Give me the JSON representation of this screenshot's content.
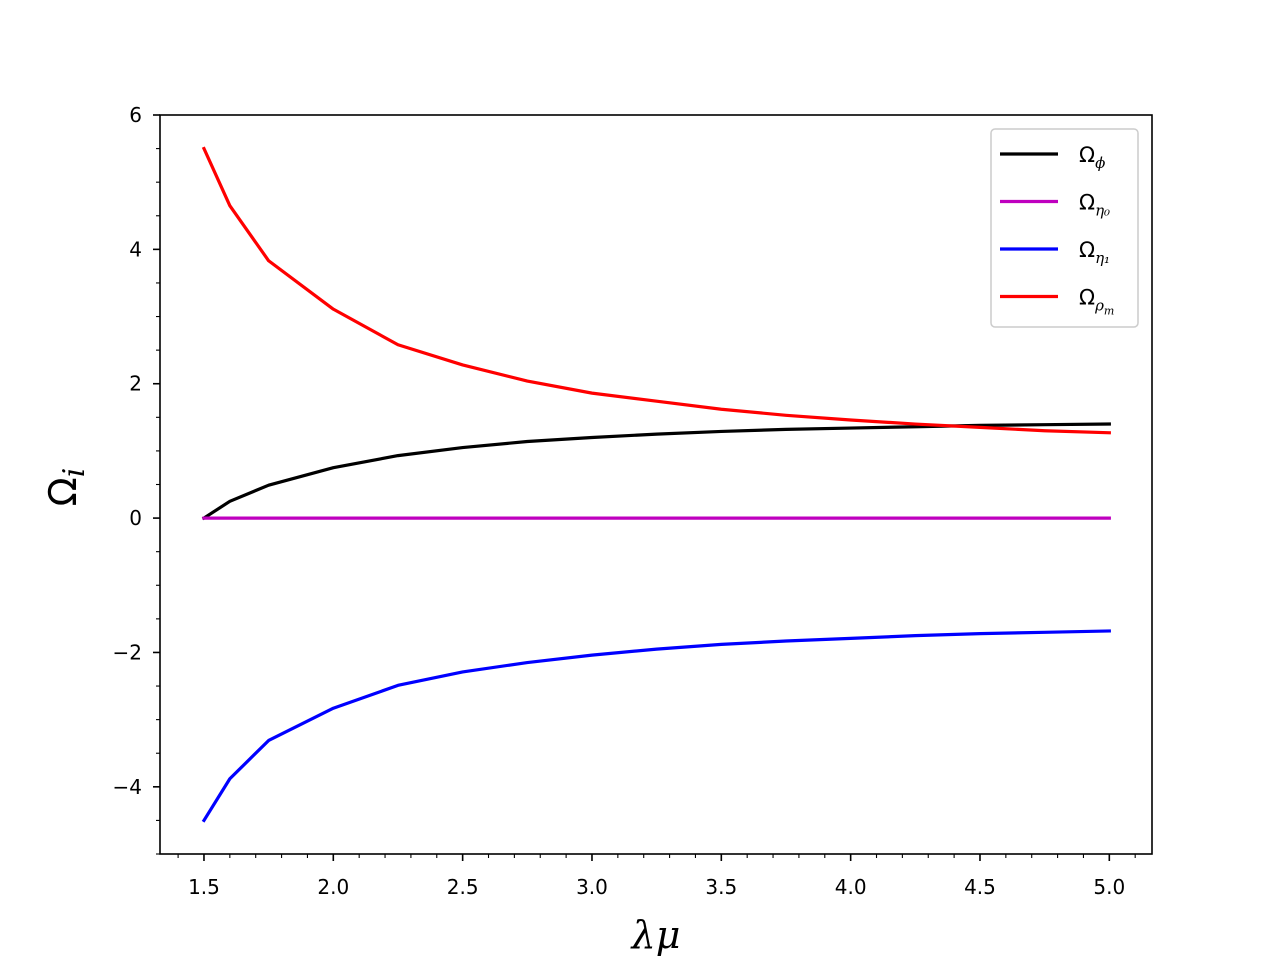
{
  "chart_data": {
    "type": "line",
    "title": "",
    "xlabel": "λμ",
    "ylabel": "Ω",
    "ylabel_sub": "i",
    "xlim": [
      1.33,
      5.165
    ],
    "ylim": [
      -5.0,
      6.0
    ],
    "x_ticks": [
      1.5,
      2.0,
      2.5,
      3.0,
      3.5,
      4.0,
      4.5,
      5.0
    ],
    "x_tick_labels": [
      "1.5",
      "2.0",
      "2.5",
      "3.0",
      "3.5",
      "4.0",
      "4.5",
      "5.0"
    ],
    "y_ticks": [
      -4,
      -2,
      0,
      2,
      4,
      6
    ],
    "y_tick_labels": [
      "−4",
      "−2",
      "0",
      "2",
      "4",
      "6"
    ],
    "grid": false,
    "legend_position": "top-right",
    "x": [
      1.5,
      1.6,
      1.75,
      2.0,
      2.25,
      2.5,
      2.75,
      3.0,
      3.25,
      3.5,
      3.75,
      4.0,
      4.25,
      4.5,
      4.75,
      5.0
    ],
    "series": [
      {
        "name": "Ω",
        "name_sub": "ϕ",
        "color": "#000000",
        "values": [
          0.0,
          0.25,
          0.49,
          0.75,
          0.93,
          1.05,
          1.14,
          1.2,
          1.25,
          1.29,
          1.32,
          1.34,
          1.36,
          1.38,
          1.39,
          1.4
        ]
      },
      {
        "name": "Ω",
        "name_sub": "η₀",
        "color": "#bf00bf",
        "values": [
          0.0,
          0.0,
          0.0,
          0.0,
          0.0,
          0.0,
          0.0,
          0.0,
          0.0,
          0.0,
          0.0,
          0.0,
          0.0,
          0.0,
          0.0,
          0.0
        ]
      },
      {
        "name": "Ω",
        "name_sub": "η₁",
        "color": "#0000ff",
        "values": [
          -4.5,
          -3.88,
          -3.31,
          -2.83,
          -2.49,
          -2.29,
          -2.15,
          -2.04,
          -1.95,
          -1.88,
          -1.83,
          -1.79,
          -1.75,
          -1.72,
          -1.7,
          -1.68
        ]
      },
      {
        "name": "Ω",
        "name_sub": "ρ",
        "name_subsub": "m",
        "color": "#ff0000",
        "values": [
          5.5,
          4.65,
          3.83,
          3.11,
          2.58,
          2.28,
          2.04,
          1.86,
          1.74,
          1.62,
          1.53,
          1.46,
          1.4,
          1.35,
          1.3,
          1.27
        ]
      }
    ]
  }
}
